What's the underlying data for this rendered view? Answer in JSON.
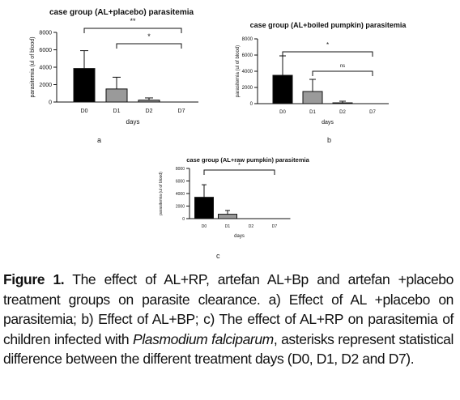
{
  "chart_data": [
    {
      "type": "bar",
      "title": "case group (AL+placebo) parasitemia",
      "xlabel": "days",
      "ylabel": "parasitemia (ul of blood)",
      "categories": [
        "D0",
        "D1",
        "D2",
        "D7"
      ],
      "values": [
        3850,
        1500,
        220,
        0
      ],
      "errors": [
        2050,
        1350,
        250,
        0
      ],
      "bar_colors": [
        "#000000",
        "#9a9a9a",
        "#9a9a9a",
        "#ffffff"
      ],
      "ylim": [
        0,
        8000
      ],
      "yticks": [
        "0",
        "2000",
        "4000",
        "6000",
        "8000"
      ],
      "significance": [
        {
          "from": "D0",
          "to": "D7",
          "label": "**"
        },
        {
          "from": "D1",
          "to": "D7",
          "label": "*"
        }
      ],
      "panel_letter": "a"
    },
    {
      "type": "bar",
      "title": "case group (AL+boiled pumpkin) parasitemia",
      "xlabel": "days",
      "ylabel": "parasitemia (ul of blood)",
      "categories": [
        "D0",
        "D1",
        "D2",
        "D7"
      ],
      "values": [
        3500,
        1500,
        100,
        0
      ],
      "errors": [
        2400,
        1500,
        200,
        0
      ],
      "bar_colors": [
        "#000000",
        "#9a9a9a",
        "#9a9a9a",
        "#ffffff"
      ],
      "ylim": [
        0,
        8000
      ],
      "yticks": [
        "0",
        "2000",
        "4000",
        "6000",
        "8000"
      ],
      "significance": [
        {
          "from": "D0",
          "to": "D7",
          "label": "*"
        },
        {
          "from": "D1",
          "to": "D7",
          "label": "ns"
        }
      ],
      "panel_letter": "b"
    },
    {
      "type": "bar",
      "title": "case group (AL+raw pumpkin) parasitemia",
      "xlabel": "days",
      "ylabel": "parasitemia (ul of blood)",
      "categories": [
        "D0",
        "D1",
        "D2",
        "D7"
      ],
      "values": [
        3400,
        700,
        0,
        0
      ],
      "errors": [
        2000,
        600,
        0,
        0
      ],
      "bar_colors": [
        "#000000",
        "#9a9a9a",
        "#9a9a9a",
        "#ffffff"
      ],
      "ylim": [
        0,
        8000
      ],
      "yticks": [
        "0",
        "2000",
        "4000",
        "6000",
        "8000"
      ],
      "significance": [
        {
          "from": "D0",
          "to": "D7",
          "label": "*"
        }
      ],
      "panel_letter": "c"
    }
  ],
  "caption": {
    "label": "Figure 1.",
    "part1": "The effect of AL+RP, artefan AL+Bp and artefan +placebo treatment groups on parasite clearance. a) Effect of AL +placebo on parasitemia; b) Effect of AL+BP; c) The effect of AL+RP on parasitemia of children infected with",
    "species": "Plasmodium falciparum",
    "part2": ", asterisks represent statistical difference between the different treatment days (D0, D1, D2 and D7)."
  }
}
